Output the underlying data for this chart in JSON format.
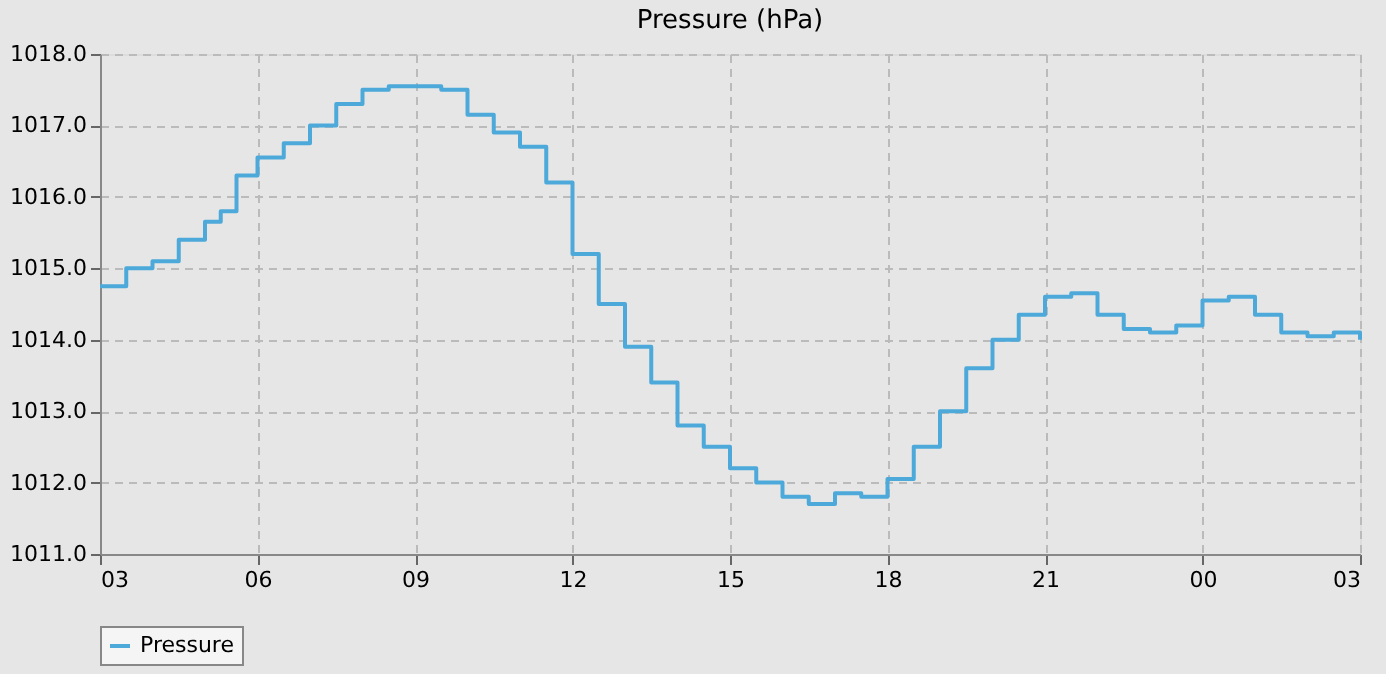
{
  "chart_data": {
    "type": "step",
    "title": "Pressure (hPa)",
    "x": [
      3.0,
      3.5,
      4.0,
      4.5,
      5.0,
      5.3,
      5.6,
      6.0,
      6.5,
      7.0,
      7.5,
      8.0,
      8.5,
      9.0,
      9.5,
      10.0,
      10.5,
      11.0,
      11.5,
      12.0,
      12.5,
      13.0,
      13.5,
      14.0,
      14.5,
      15.0,
      15.5,
      16.0,
      16.5,
      17.0,
      17.5,
      18.0,
      18.5,
      19.0,
      19.5,
      20.0,
      20.5,
      21.0,
      21.5,
      22.0,
      22.5,
      23.0,
      23.5,
      24.0,
      24.5,
      25.0,
      25.5,
      26.0,
      26.5,
      27.0
    ],
    "series": [
      {
        "name": "Pressure",
        "color": "#4ca9d9",
        "values": [
          1014.75,
          1015.0,
          1015.1,
          1015.4,
          1015.65,
          1015.8,
          1016.3,
          1016.55,
          1016.75,
          1017.0,
          1017.3,
          1017.5,
          1017.55,
          1017.55,
          1017.5,
          1017.15,
          1016.9,
          1016.7,
          1016.2,
          1015.2,
          1014.5,
          1013.9,
          1013.4,
          1012.8,
          1012.5,
          1012.2,
          1012.0,
          1011.8,
          1011.7,
          1011.85,
          1011.8,
          1012.05,
          1012.5,
          1013.0,
          1013.6,
          1014.0,
          1014.35,
          1014.6,
          1014.65,
          1014.35,
          1014.15,
          1014.1,
          1014.2,
          1014.55,
          1014.6,
          1014.35,
          1014.1,
          1014.05,
          1014.1,
          1014.0
        ]
      }
    ],
    "xlim": [
      3,
      27
    ],
    "xticks": [
      {
        "value": 3,
        "label": "03"
      },
      {
        "value": 6,
        "label": "06"
      },
      {
        "value": 9,
        "label": "09"
      },
      {
        "value": 12,
        "label": "12"
      },
      {
        "value": 15,
        "label": "15"
      },
      {
        "value": 18,
        "label": "18"
      },
      {
        "value": 21,
        "label": "21"
      },
      {
        "value": 24,
        "label": "00"
      },
      {
        "value": 27,
        "label": "03"
      }
    ],
    "ylim": [
      1011,
      1018
    ],
    "yticks": [
      {
        "value": 1011,
        "label": "1011.0"
      },
      {
        "value": 1012,
        "label": "1012.0"
      },
      {
        "value": 1013,
        "label": "1013.0"
      },
      {
        "value": 1014,
        "label": "1014.0"
      },
      {
        "value": 1015,
        "label": "1015.0"
      },
      {
        "value": 1016,
        "label": "1016.0"
      },
      {
        "value": 1017,
        "label": "1017.0"
      },
      {
        "value": 1018,
        "label": "1018.0"
      }
    ],
    "grid": true,
    "legend": "bottom",
    "line_style": "solid",
    "marker": "none"
  }
}
